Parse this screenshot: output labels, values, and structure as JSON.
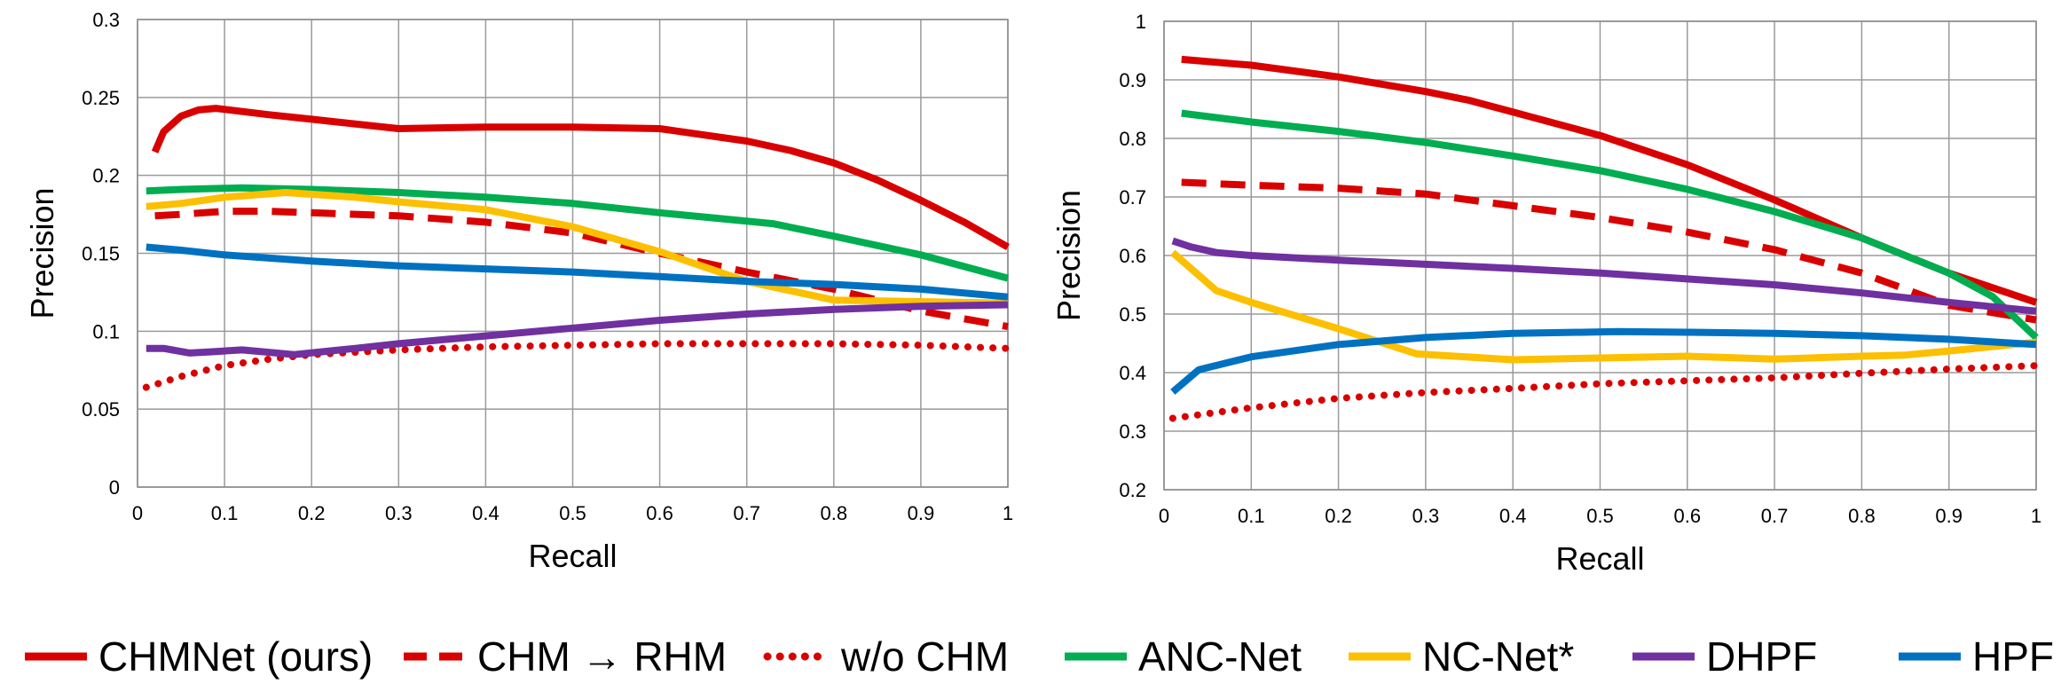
{
  "chart_data": [
    {
      "type": "line",
      "title": "",
      "xlabel": "Recall",
      "ylabel": "Precision",
      "xlim": [
        0,
        1
      ],
      "ylim": [
        0,
        0.3
      ],
      "xticks": [
        "0",
        "0.1",
        "0.2",
        "0.3",
        "0.4",
        "0.5",
        "0.6",
        "0.7",
        "0.8",
        "0.9",
        "1"
      ],
      "yticks": [
        "0",
        "0.05",
        "0.1",
        "0.15",
        "0.2",
        "0.25",
        "0.3"
      ],
      "grid": true,
      "series": [
        {
          "name": "CHMNet (ours)",
          "color": "#d90000",
          "dash": "solid",
          "x": [
            0.02,
            0.03,
            0.05,
            0.07,
            0.09,
            0.15,
            0.2,
            0.3,
            0.4,
            0.45,
            0.5,
            0.6,
            0.7,
            0.75,
            0.8,
            0.85,
            0.9,
            0.95,
            1.0
          ],
          "y": [
            0.215,
            0.228,
            0.238,
            0.242,
            0.243,
            0.239,
            0.236,
            0.23,
            0.231,
            0.231,
            0.231,
            0.23,
            0.222,
            0.216,
            0.208,
            0.197,
            0.184,
            0.17,
            0.154
          ]
        },
        {
          "name": "CHM → RHM",
          "color": "#d90000",
          "dash": "dash",
          "x": [
            0.02,
            0.05,
            0.1,
            0.15,
            0.2,
            0.3,
            0.4,
            0.5,
            0.6,
            0.7,
            0.8,
            0.9,
            1.0
          ],
          "y": [
            0.174,
            0.175,
            0.177,
            0.177,
            0.176,
            0.174,
            0.17,
            0.163,
            0.15,
            0.138,
            0.127,
            0.113,
            0.103
          ]
        },
        {
          "name": "w/o CHM",
          "color": "#d90000",
          "dash": "dot",
          "x": [
            0.01,
            0.05,
            0.1,
            0.15,
            0.2,
            0.3,
            0.4,
            0.5,
            0.6,
            0.7,
            0.8,
            0.9,
            1.0
          ],
          "y": [
            0.064,
            0.071,
            0.078,
            0.082,
            0.085,
            0.088,
            0.09,
            0.091,
            0.092,
            0.092,
            0.092,
            0.091,
            0.089
          ]
        },
        {
          "name": "ANC-Net",
          "color": "#00ad50",
          "dash": "solid",
          "x": [
            0.01,
            0.05,
            0.12,
            0.2,
            0.3,
            0.4,
            0.5,
            0.6,
            0.73,
            0.8,
            0.9,
            1.0
          ],
          "y": [
            0.19,
            0.191,
            0.192,
            0.191,
            0.189,
            0.186,
            0.182,
            0.176,
            0.169,
            0.161,
            0.149,
            0.134
          ]
        },
        {
          "name": "NC-Net*",
          "color": "#fcc000",
          "dash": "solid",
          "x": [
            0.01,
            0.05,
            0.1,
            0.17,
            0.25,
            0.3,
            0.4,
            0.5,
            0.6,
            0.7,
            0.8,
            0.9,
            1.0
          ],
          "y": [
            0.18,
            0.182,
            0.186,
            0.189,
            0.186,
            0.183,
            0.178,
            0.167,
            0.151,
            0.132,
            0.12,
            0.119,
            0.118
          ]
        },
        {
          "name": "DHPF",
          "color": "#7030a0",
          "dash": "solid",
          "x": [
            0.01,
            0.03,
            0.06,
            0.09,
            0.12,
            0.18,
            0.25,
            0.3,
            0.4,
            0.5,
            0.6,
            0.7,
            0.8,
            0.9,
            1.0
          ],
          "y": [
            0.089,
            0.089,
            0.086,
            0.087,
            0.088,
            0.085,
            0.089,
            0.092,
            0.097,
            0.102,
            0.107,
            0.111,
            0.114,
            0.116,
            0.117
          ]
        },
        {
          "name": "HPF",
          "color": "#0071c1",
          "dash": "solid",
          "x": [
            0.01,
            0.05,
            0.1,
            0.2,
            0.3,
            0.4,
            0.5,
            0.6,
            0.7,
            0.8,
            0.9,
            1.0
          ],
          "y": [
            0.154,
            0.152,
            0.149,
            0.145,
            0.142,
            0.14,
            0.138,
            0.135,
            0.132,
            0.13,
            0.127,
            0.122
          ]
        }
      ]
    },
    {
      "type": "line",
      "title": "",
      "xlabel": "Recall",
      "ylabel": "Precision",
      "xlim": [
        0,
        1
      ],
      "ylim": [
        0.2,
        1
      ],
      "xticks": [
        "0",
        "0.1",
        "0.2",
        "0.3",
        "0.4",
        "0.5",
        "0.6",
        "0.7",
        "0.8",
        "0.9",
        "1"
      ],
      "yticks": [
        "0.2",
        "0.3",
        "0.4",
        "0.5",
        "0.6",
        "0.7",
        "0.8",
        "0.9",
        "1"
      ],
      "grid": true,
      "series": [
        {
          "name": "CHMNet (ours)",
          "color": "#d90000",
          "dash": "solid",
          "x": [
            0.02,
            0.1,
            0.2,
            0.3,
            0.35,
            0.4,
            0.5,
            0.6,
            0.7,
            0.8,
            0.9,
            0.95,
            1.0
          ],
          "y": [
            0.935,
            0.925,
            0.905,
            0.88,
            0.865,
            0.845,
            0.805,
            0.755,
            0.695,
            0.63,
            0.57,
            0.545,
            0.52
          ]
        },
        {
          "name": "CHM → RHM",
          "color": "#d90000",
          "dash": "dash",
          "x": [
            0.02,
            0.1,
            0.2,
            0.3,
            0.4,
            0.5,
            0.6,
            0.7,
            0.8,
            0.9,
            1.0
          ],
          "y": [
            0.725,
            0.72,
            0.715,
            0.705,
            0.685,
            0.665,
            0.64,
            0.61,
            0.57,
            0.515,
            0.49
          ]
        },
        {
          "name": "w/o CHM",
          "color": "#d90000",
          "dash": "dot",
          "x": [
            0.01,
            0.1,
            0.2,
            0.3,
            0.4,
            0.5,
            0.6,
            0.7,
            0.8,
            0.9,
            1.0
          ],
          "y": [
            0.322,
            0.34,
            0.356,
            0.366,
            0.373,
            0.381,
            0.386,
            0.391,
            0.399,
            0.406,
            0.412
          ]
        },
        {
          "name": "ANC-Net",
          "color": "#00ad50",
          "dash": "solid",
          "x": [
            0.02,
            0.1,
            0.2,
            0.3,
            0.4,
            0.5,
            0.6,
            0.7,
            0.8,
            0.9,
            0.95,
            1.0
          ],
          "y": [
            0.843,
            0.828,
            0.812,
            0.793,
            0.77,
            0.745,
            0.713,
            0.675,
            0.63,
            0.57,
            0.53,
            0.46
          ]
        },
        {
          "name": "NC-Net*",
          "color": "#fcc000",
          "dash": "solid",
          "x": [
            0.01,
            0.06,
            0.1,
            0.2,
            0.29,
            0.4,
            0.5,
            0.6,
            0.7,
            0.8,
            0.85,
            0.9,
            1.0
          ],
          "y": [
            0.605,
            0.54,
            0.52,
            0.475,
            0.432,
            0.422,
            0.425,
            0.428,
            0.423,
            0.428,
            0.43,
            0.437,
            0.452
          ]
        },
        {
          "name": "DHPF",
          "color": "#7030a0",
          "dash": "solid",
          "x": [
            0.01,
            0.03,
            0.06,
            0.1,
            0.2,
            0.3,
            0.4,
            0.5,
            0.6,
            0.7,
            0.8,
            0.9,
            1.0
          ],
          "y": [
            0.625,
            0.615,
            0.605,
            0.6,
            0.592,
            0.585,
            0.578,
            0.57,
            0.56,
            0.55,
            0.536,
            0.52,
            0.505
          ]
        },
        {
          "name": "HPF",
          "color": "#0071c1",
          "dash": "solid",
          "x": [
            0.01,
            0.04,
            0.1,
            0.2,
            0.3,
            0.4,
            0.52,
            0.6,
            0.7,
            0.8,
            0.9,
            1.0
          ],
          "y": [
            0.367,
            0.405,
            0.427,
            0.448,
            0.46,
            0.467,
            0.47,
            0.469,
            0.467,
            0.463,
            0.457,
            0.448
          ]
        }
      ]
    }
  ],
  "legend": [
    {
      "label": "CHMNet (ours)",
      "color": "#d90000",
      "dash": "solid"
    },
    {
      "label": "CHM → RHM",
      "color": "#d90000",
      "dash": "dash"
    },
    {
      "label": "w/o CHM",
      "color": "#d90000",
      "dash": "dot"
    },
    {
      "label": "ANC-Net",
      "color": "#00ad50",
      "dash": "solid"
    },
    {
      "label": "NC-Net*",
      "color": "#fcc000",
      "dash": "solid"
    },
    {
      "label": "DHPF",
      "color": "#7030a0",
      "dash": "solid"
    },
    {
      "label": "HPF",
      "color": "#0071c1",
      "dash": "solid"
    }
  ]
}
